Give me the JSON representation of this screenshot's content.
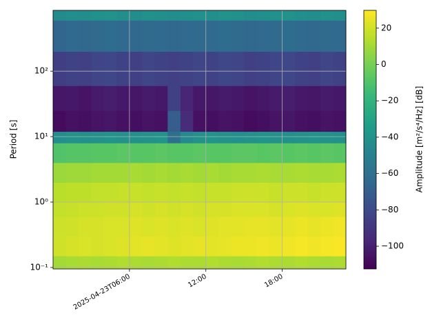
{
  "chart_data": {
    "type": "heatmap",
    "ylabel": "Period [s]",
    "colorbar_label": "Amplitude [m²/s⁴/Hz] [dB]",
    "colormap": "viridis",
    "yscale": "log",
    "grid": true,
    "xlim": [
      "2025-04-23T00:00",
      "2025-04-23T23:00"
    ],
    "xticks": [
      "2025-04-23T06:00",
      {
        "value": "2025-04-23T12:00",
        "label": "12:00"
      },
      {
        "value": "2025-04-23T18:00",
        "label": "18:00"
      }
    ],
    "ylim": [
      0.095,
      850
    ],
    "yticks": [
      {
        "value": 0.1,
        "label": "10⁻¹"
      },
      {
        "value": 1,
        "label": "10⁰"
      },
      {
        "value": 10,
        "label": "10¹"
      },
      {
        "value": 100,
        "label": "10²"
      }
    ],
    "clim": [
      -112.5,
      29.8
    ],
    "cticks": [
      20,
      0,
      {
        "value": -20,
        "label": "−20"
      },
      {
        "value": -40,
        "label": "−40"
      },
      {
        "value": -60,
        "label": "−60"
      },
      {
        "value": -80,
        "label": "−80"
      },
      {
        "value": -100,
        "label": "−100"
      }
    ],
    "x_bins": [
      "2025-04-23T00:00",
      "2025-04-23T01:00",
      "2025-04-23T02:00",
      "2025-04-23T03:00",
      "2025-04-23T04:00",
      "2025-04-23T05:00",
      "2025-04-23T06:00",
      "2025-04-23T07:00",
      "2025-04-23T08:00",
      "2025-04-23T09:00",
      "2025-04-23T10:00",
      "2025-04-23T11:00",
      "2025-04-23T12:00",
      "2025-04-23T13:00",
      "2025-04-23T14:00",
      "2025-04-23T15:00",
      "2025-04-23T16:00",
      "2025-04-23T17:00",
      "2025-04-23T18:00",
      "2025-04-23T19:00",
      "2025-04-23T20:00",
      "2025-04-23T21:00",
      "2025-04-23T22:00",
      "2025-04-23T23:00"
    ],
    "y_bins": [
      0.095,
      0.15,
      0.3,
      0.6,
      1,
      2,
      4,
      8,
      12,
      25,
      60,
      200,
      600,
      850
    ],
    "z": [
      [
        10,
        11,
        12,
        11,
        12,
        13,
        12,
        11,
        12,
        13,
        12,
        12,
        13,
        12,
        11,
        12,
        13,
        12,
        12,
        13,
        12,
        11,
        12
      ],
      [
        20,
        21,
        22,
        21,
        22,
        23,
        24,
        25,
        24,
        23,
        24,
        25,
        24,
        25,
        26,
        26,
        27,
        26,
        27,
        28,
        27,
        28,
        29
      ],
      [
        19,
        20,
        21,
        21,
        22,
        22,
        23,
        22,
        23,
        22,
        23,
        22,
        23,
        24,
        24,
        25,
        25,
        24,
        25,
        26,
        25,
        26,
        27
      ],
      [
        17,
        18,
        19,
        19,
        20,
        20,
        21,
        20,
        21,
        20,
        21,
        20,
        21,
        21,
        22,
        22,
        22,
        21,
        22,
        23,
        22,
        22,
        23
      ],
      [
        15,
        16,
        16,
        17,
        17,
        18,
        18,
        17,
        18,
        17,
        18,
        17,
        18,
        18,
        19,
        19,
        19,
        18,
        19,
        19,
        18,
        19,
        19
      ],
      [
        8,
        9,
        9,
        10,
        10,
        10,
        11,
        10,
        11,
        10,
        11,
        10,
        11,
        10,
        11,
        11,
        12,
        11,
        11,
        12,
        11,
        11,
        12
      ],
      [
        -10,
        -9,
        -9,
        -8,
        -8,
        -7,
        -8,
        -8,
        -7,
        -8,
        -8,
        -7,
        -8,
        -8,
        -7,
        -7,
        -8,
        -7,
        -8,
        -7,
        -8,
        -7,
        -8
      ],
      [
        -42,
        -40,
        -41,
        -40,
        -39,
        -40,
        -41,
        -40,
        -39,
        -60,
        -45,
        -40,
        -39,
        -40,
        -41,
        -40,
        -39,
        -40,
        -41,
        -40,
        -39,
        -40,
        -41
      ],
      [
        -108,
        -106,
        -107,
        -105,
        -104,
        -106,
        -107,
        -105,
        -106,
        -70,
        -95,
        -106,
        -107,
        -105,
        -106,
        -108,
        -107,
        -105,
        -104,
        -106,
        -107,
        -105,
        -106
      ],
      [
        -104,
        -103,
        -105,
        -102,
        -101,
        -103,
        -104,
        -102,
        -103,
        -85,
        -98,
        -103,
        -104,
        -102,
        -103,
        -105,
        -104,
        -102,
        -101,
        -103,
        -104,
        -102,
        -103
      ],
      [
        -86,
        -84,
        -85,
        -83,
        -82,
        -84,
        -85,
        -83,
        -84,
        -85,
        -84,
        -83,
        -84,
        -82,
        -83,
        -85,
        -84,
        -83,
        -82,
        -84,
        -85,
        -83,
        -84
      ],
      [
        -66,
        -64,
        -65,
        -63,
        -62,
        -64,
        -65,
        -63,
        -64,
        -65,
        -64,
        -63,
        -64,
        -62,
        -63,
        -65,
        -64,
        -63,
        -62,
        -64,
        -65,
        -63,
        -64
      ],
      [
        -44,
        -42,
        -43,
        -41,
        -40,
        -42,
        -43,
        -41,
        -42,
        -43,
        -42,
        -41,
        -42,
        -40,
        -41,
        -43,
        -42,
        -41,
        -40,
        -42,
        -43,
        -41,
        -42
      ]
    ]
  }
}
